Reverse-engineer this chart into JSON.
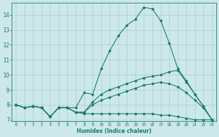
{
  "bg_color": "#cce8e8",
  "line_color": "#1a7a6a",
  "grid_color": "#aacccc",
  "xlabel": "Humidex (Indice chaleur)",
  "xlim": [
    -0.5,
    23.5
  ],
  "ylim": [
    6.9,
    14.8
  ],
  "yticks": [
    7,
    8,
    9,
    10,
    11,
    12,
    13,
    14
  ],
  "xticks": [
    0,
    1,
    2,
    3,
    4,
    5,
    6,
    7,
    8,
    9,
    10,
    11,
    12,
    13,
    14,
    15,
    16,
    17,
    18,
    19,
    20,
    21,
    22,
    23
  ],
  "line1_x": [
    0,
    1,
    2,
    3,
    4,
    5,
    6,
    7,
    8,
    9,
    10,
    11,
    12,
    13,
    14,
    15,
    16,
    17,
    18,
    19,
    20,
    21,
    22,
    23
  ],
  "line1_y": [
    8.0,
    7.8,
    7.9,
    7.8,
    7.2,
    7.8,
    7.8,
    7.8,
    8.8,
    8.7,
    10.4,
    11.6,
    12.6,
    13.3,
    13.7,
    14.5,
    14.4,
    13.6,
    12.1,
    10.4,
    9.6,
    8.7,
    7.9,
    7.0
  ],
  "line2_x": [
    0,
    1,
    2,
    3,
    4,
    5,
    6,
    7,
    8,
    9,
    10,
    11,
    12,
    13,
    14,
    15,
    16,
    17,
    18,
    19,
    20,
    21,
    22,
    23
  ],
  "line2_y": [
    8.0,
    7.8,
    7.9,
    7.8,
    7.2,
    7.8,
    7.8,
    7.5,
    7.5,
    8.2,
    8.7,
    9.0,
    9.2,
    9.4,
    9.6,
    9.8,
    9.9,
    10.0,
    10.2,
    10.3,
    9.5,
    8.7,
    7.9,
    7.0
  ],
  "line3_x": [
    0,
    1,
    2,
    3,
    4,
    5,
    6,
    7,
    8,
    9,
    10,
    11,
    12,
    13,
    14,
    15,
    16,
    17,
    18,
    19,
    20,
    21,
    22,
    23
  ],
  "line3_y": [
    8.0,
    7.8,
    7.9,
    7.8,
    7.2,
    7.8,
    7.8,
    7.5,
    7.5,
    8.0,
    8.3,
    8.5,
    8.7,
    8.9,
    9.1,
    9.3,
    9.4,
    9.5,
    9.4,
    9.2,
    8.8,
    8.3,
    7.8,
    7.0
  ],
  "line4_x": [
    0,
    1,
    2,
    3,
    4,
    5,
    6,
    7,
    8,
    9,
    10,
    11,
    12,
    13,
    14,
    15,
    16,
    17,
    18,
    19,
    20,
    21,
    22,
    23
  ],
  "line4_y": [
    8.0,
    7.8,
    7.9,
    7.8,
    7.2,
    7.8,
    7.8,
    7.5,
    7.4,
    7.4,
    7.4,
    7.4,
    7.4,
    7.4,
    7.4,
    7.4,
    7.4,
    7.3,
    7.3,
    7.2,
    7.1,
    7.0,
    7.0,
    7.0
  ]
}
